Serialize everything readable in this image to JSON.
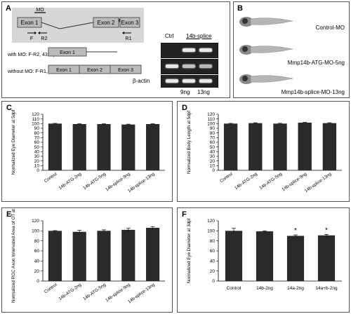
{
  "panels": {
    "A": {
      "label": "A",
      "mo_label": "MO",
      "exons": [
        "Exon 1",
        "Exon 2",
        "Exon 3"
      ],
      "primers": {
        "f": "F",
        "r2": "R2",
        "r1": "R1"
      },
      "with_mo": "with MO: F-R2, 432bp",
      "without_mo": "without MO: F-R1, 329bp",
      "gel_ctrl": "Ctrl",
      "gel_treat": "14b-splice",
      "beta_actin": "β-actin",
      "dose1": "9ng",
      "dose2": "13ng"
    },
    "B": {
      "label": "B",
      "fish_labels": [
        "Control-MO",
        "Mmp14b-ATG-MO-5ng",
        "Mmp14b-splice-MO-13ng"
      ]
    }
  },
  "chart_data": [
    {
      "panel": "C",
      "type": "bar",
      "categories": [
        "Control",
        "14b-ATG-2ng",
        "14b-ATG-5ng",
        "14b-splice-9ng",
        "14b-splice-13ng"
      ],
      "values": [
        100,
        99,
        99,
        98,
        99
      ],
      "errors": [
        0.5,
        0.6,
        0.5,
        0.8,
        0.7
      ],
      "ylabel": "Normalized Eye Diameter at 5dpf",
      "ylim": [
        0,
        120
      ],
      "yticks": [
        0,
        10,
        20,
        30,
        40,
        50,
        60,
        70,
        80,
        90,
        100,
        110,
        120
      ],
      "stars": []
    },
    {
      "panel": "D",
      "type": "bar",
      "categories": [
        "Control",
        "14b-ATG-2ng",
        "14b-ATG-5ng",
        "14b-splice-9ng",
        "14b-splice-13ng"
      ],
      "values": [
        100,
        101,
        100,
        102,
        101
      ],
      "errors": [
        0.5,
        0.8,
        0.6,
        0.7,
        0.9
      ],
      "ylabel": "Normalized Body Length at 5dpf",
      "ylim": [
        0,
        120
      ],
      "yticks": [
        0,
        10,
        20,
        30,
        40,
        50,
        60,
        70,
        80,
        90,
        100,
        110,
        120
      ],
      "stars": []
    },
    {
      "panel": "E",
      "type": "bar",
      "categories": [
        "Control",
        "14b-ATG-2ng",
        "14b-ATG-5ng",
        "14b-splice-9ng",
        "14b-splice-13ng"
      ],
      "values": [
        100,
        98,
        100,
        102,
        106
      ],
      "errors": [
        0.5,
        3,
        2,
        3,
        2
      ],
      "ylabel": "Normalized RGC Axon Innervated Area of OT at 5dpf",
      "ylim": [
        0,
        120
      ],
      "yticks": [
        0,
        20,
        40,
        60,
        80,
        100,
        120
      ],
      "stars": []
    },
    {
      "panel": "F",
      "type": "bar",
      "categories": [
        "Control",
        "14b-2ng",
        "14a-2ng",
        "14a+b-2ng"
      ],
      "values": [
        100,
        99,
        90,
        91
      ],
      "errors": [
        5,
        1,
        2,
        2
      ],
      "ylabel": "Normalized Eye Diameter at 3dpf",
      "ylim": [
        0,
        120
      ],
      "yticks": [
        0,
        20,
        40,
        60,
        80,
        100,
        120
      ],
      "stars": [
        "",
        "",
        "*",
        "*"
      ]
    }
  ]
}
